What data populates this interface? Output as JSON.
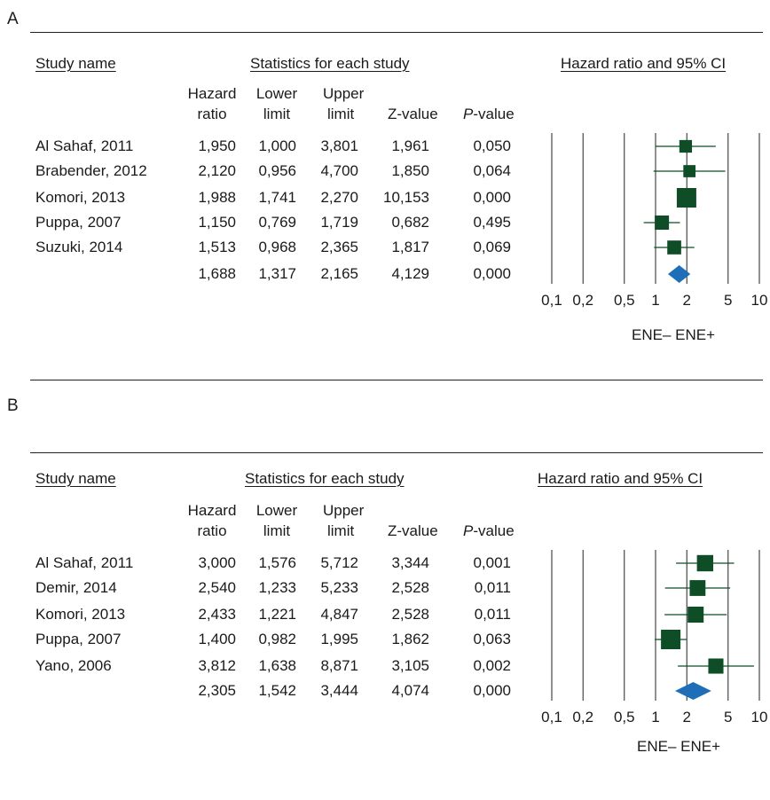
{
  "panels": [
    {
      "letter": "A",
      "headers": {
        "study": "Study name",
        "stats": "Statistics for each study",
        "plot": "Hazard ratio and 95% CI",
        "hr_1": "Hazard",
        "hr_2": "ratio",
        "lower_1": "Lower",
        "lower_2": "limit",
        "upper_1": "Upper",
        "upper_2": "limit",
        "z": "Z-value",
        "p_italic": "P",
        "p_rest": "-value"
      },
      "rows": [
        {
          "study": "Al Sahaf, 2011",
          "hr": "1,950",
          "lower": "1,000",
          "upper": "3,801",
          "z": "1,961",
          "p": "0,050"
        },
        {
          "study": "Brabender, 2012",
          "hr": "2,120",
          "lower": "0,956",
          "upper": "4,700",
          "z": "1,850",
          "p": "0,064"
        },
        {
          "study": "Komori, 2013",
          "hr": "1,988",
          "lower": "1,741",
          "upper": "2,270",
          "z": "10,153",
          "p": "0,000"
        },
        {
          "study": "Puppa, 2007",
          "hr": "1,150",
          "lower": "0,769",
          "upper": "1,719",
          "z": "0,682",
          "p": "0,495"
        },
        {
          "study": "Suzuki, 2014",
          "hr": "1,513",
          "lower": "0,968",
          "upper": "2,365",
          "z": "1,817",
          "p": "0,069"
        }
      ],
      "summary": {
        "study": "",
        "hr": "1,688",
        "lower": "1,317",
        "upper": "2,165",
        "z": "4,129",
        "p": "0,000"
      },
      "axis_ticks": [
        "0,1",
        "0,2",
        "0,5",
        "1",
        "2",
        "5",
        "10"
      ],
      "footer": "ENE– ENE+"
    },
    {
      "letter": "B",
      "headers": {
        "study": "Study name",
        "stats": "Statistics for each study",
        "plot": "Hazard ratio and 95% CI",
        "hr_1": "Hazard",
        "hr_2": "ratio",
        "lower_1": "Lower",
        "lower_2": "limit",
        "upper_1": "Upper",
        "upper_2": "limit",
        "z": "Z-value",
        "p_italic": "P",
        "p_rest": "-value"
      },
      "rows": [
        {
          "study": "Al Sahaf, 2011",
          "hr": "3,000",
          "lower": "1,576",
          "upper": "5,712",
          "z": "3,344",
          "p": "0,001"
        },
        {
          "study": "Demir, 2014",
          "hr": "2,540",
          "lower": "1,233",
          "upper": "5,233",
          "z": "2,528",
          "p": "0,011"
        },
        {
          "study": "Komori, 2013",
          "hr": "2,433",
          "lower": "1,221",
          "upper": "4,847",
          "z": "2,528",
          "p": "0,011"
        },
        {
          "study": "Puppa, 2007",
          "hr": "1,400",
          "lower": "0,982",
          "upper": "1,995",
          "z": "1,862",
          "p": "0,063"
        },
        {
          "study": "Yano, 2006",
          "hr": "3,812",
          "lower": "1,638",
          "upper": "8,871",
          "z": "3,105",
          "p": "0,002"
        }
      ],
      "summary": {
        "study": "",
        "hr": "2,305",
        "lower": "1,542",
        "upper": "3,444",
        "z": "4,074",
        "p": "0,000"
      },
      "axis_ticks": [
        "0,1",
        "0,2",
        "0,5",
        "1",
        "2",
        "5",
        "10"
      ],
      "footer": "ENE– ENE+"
    }
  ],
  "chart_data": [
    {
      "type": "forest",
      "title": "Hazard ratio and 95% CI",
      "x_scale": "log",
      "xlim": [
        0.1,
        10
      ],
      "x_ticks": [
        0.1,
        0.2,
        0.5,
        1,
        2,
        5,
        10
      ],
      "xlabel": "ENE– ENE+",
      "studies": [
        {
          "name": "Al Sahaf, 2011",
          "hr": 1.95,
          "lower": 1.0,
          "upper": 3.801,
          "z": 1.961,
          "p": 0.05
        },
        {
          "name": "Brabender, 2012",
          "hr": 2.12,
          "lower": 0.956,
          "upper": 4.7,
          "z": 1.85,
          "p": 0.064
        },
        {
          "name": "Komori, 2013",
          "hr": 1.988,
          "lower": 1.741,
          "upper": 2.27,
          "z": 10.153,
          "p": 0.0
        },
        {
          "name": "Puppa, 2007",
          "hr": 1.15,
          "lower": 0.769,
          "upper": 1.719,
          "z": 0.682,
          "p": 0.495
        },
        {
          "name": "Suzuki, 2014",
          "hr": 1.513,
          "lower": 0.968,
          "upper": 2.365,
          "z": 1.817,
          "p": 0.069
        }
      ],
      "summary": {
        "hr": 1.688,
        "lower": 1.317,
        "upper": 2.165,
        "z": 4.129,
        "p": 0.0
      },
      "marker_color": "#0f4d26",
      "summary_color": "#1f6fb8"
    },
    {
      "type": "forest",
      "title": "Hazard ratio and 95% CI",
      "x_scale": "log",
      "xlim": [
        0.1,
        10
      ],
      "x_ticks": [
        0.1,
        0.2,
        0.5,
        1,
        2,
        5,
        10
      ],
      "xlabel": "ENE– ENE+",
      "studies": [
        {
          "name": "Al Sahaf, 2011",
          "hr": 3.0,
          "lower": 1.576,
          "upper": 5.712,
          "z": 3.344,
          "p": 0.001
        },
        {
          "name": "Demir, 2014",
          "hr": 2.54,
          "lower": 1.233,
          "upper": 5.233,
          "z": 2.528,
          "p": 0.011
        },
        {
          "name": "Komori, 2013",
          "hr": 2.433,
          "lower": 1.221,
          "upper": 4.847,
          "z": 2.528,
          "p": 0.011
        },
        {
          "name": "Puppa, 2007",
          "hr": 1.4,
          "lower": 0.982,
          "upper": 1.995,
          "z": 1.862,
          "p": 0.063
        },
        {
          "name": "Yano, 2006",
          "hr": 3.812,
          "lower": 1.638,
          "upper": 8.871,
          "z": 3.105,
          "p": 0.002
        }
      ],
      "summary": {
        "hr": 2.305,
        "lower": 1.542,
        "upper": 3.444,
        "z": 4.074,
        "p": 0.0
      },
      "marker_color": "#0f4d26",
      "summary_color": "#1f6fb8"
    }
  ]
}
